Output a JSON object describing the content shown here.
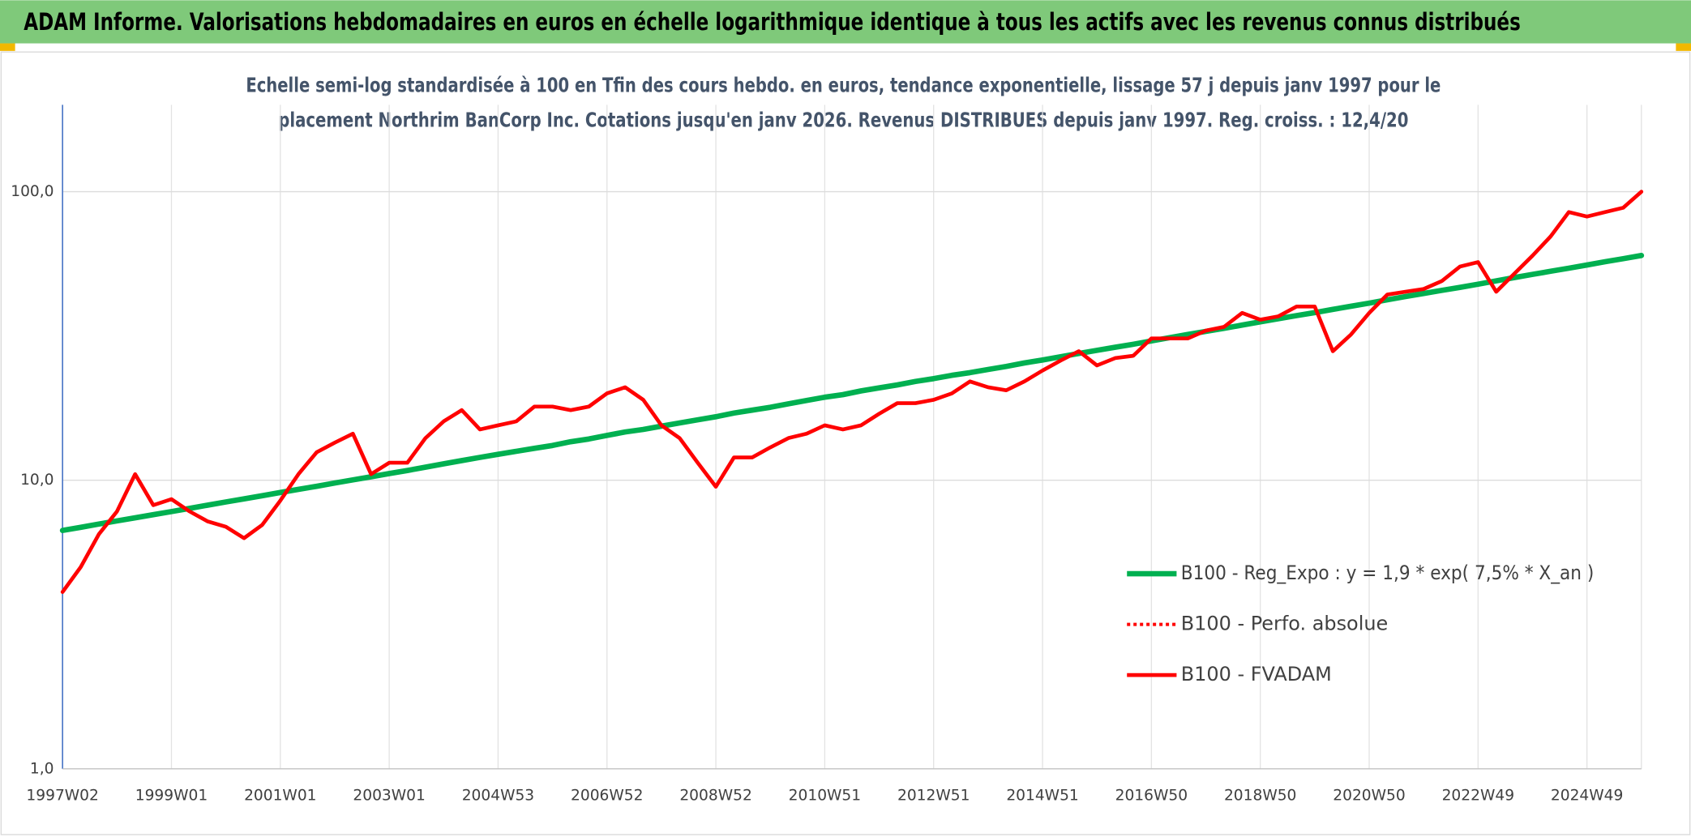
{
  "chart_data": {
    "type": "line",
    "title": "ADAM Informe. Valorisations hebdomadaires en euros en échelle logarithmique identique à tous les actifs avec les revenus connus distribués",
    "subtitle": [
      "Echelle semi-log standardisée à 100 en Tfin des cours hebdo. en euros, tendance exponentielle, lissage 57 j depuis janv 1997 pour le",
      "placement Northrim BanCorp Inc. Cotations jusqu'en janv 2026. Revenus DISTRIBUES depuis janv 1997. Reg. croiss. : 12,4/20"
    ],
    "categories": [
      "1997W02",
      null,
      null,
      null,
      null,
      null,
      "1999W01",
      null,
      null,
      null,
      null,
      null,
      "2001W01",
      null,
      null,
      null,
      null,
      null,
      "2003W01",
      null,
      null,
      null,
      null,
      null,
      "2004W53",
      null,
      null,
      null,
      null,
      null,
      "2006W52",
      null,
      null,
      null,
      null,
      null,
      "2008W52",
      null,
      null,
      null,
      null,
      null,
      "2010W51",
      null,
      null,
      null,
      null,
      null,
      "2012W51",
      null,
      null,
      null,
      null,
      null,
      "2014W51",
      null,
      null,
      null,
      null,
      null,
      "2016W50",
      null,
      null,
      null,
      null,
      null,
      "2018W50",
      null,
      null,
      null,
      null,
      null,
      "2020W50",
      null,
      null,
      null,
      null,
      null,
      "2022W49",
      null,
      null,
      null,
      null,
      null,
      "2024W49",
      null,
      null,
      null
    ],
    "log_scale": true,
    "grid": true,
    "ylim": [
      1,
      200
    ],
    "yticks": [
      {
        "value": 1,
        "label": "1,0"
      },
      {
        "value": 10,
        "label": "10,0"
      },
      {
        "value": 100,
        "label": "100,0"
      }
    ],
    "series": [
      {
        "name": "B100 - Reg_Expo : y = 1,9 * exp( 7,5% *  X_an )",
        "color": "#00b050",
        "width": 5,
        "values": [
          6.7,
          6.87,
          7.05,
          7.23,
          7.41,
          7.6,
          7.79,
          7.99,
          8.2,
          8.41,
          8.62,
          8.84,
          9.07,
          9.3,
          9.53,
          9.78,
          10.03,
          10.28,
          10.55,
          10.81,
          11.1,
          11.4,
          11.7,
          12.0,
          12.3,
          12.6,
          12.9,
          13.2,
          13.6,
          13.9,
          14.3,
          14.7,
          15.0,
          15.4,
          15.8,
          16.2,
          16.6,
          17.1,
          17.5,
          17.9,
          18.4,
          18.9,
          19.4,
          19.8,
          20.4,
          20.9,
          21.4,
          22.0,
          22.5,
          23.1,
          23.6,
          24.2,
          24.8,
          25.5,
          26.1,
          26.8,
          27.5,
          28.2,
          28.9,
          29.6,
          30.4,
          31.2,
          32.0,
          32.8,
          33.6,
          34.5,
          35.4,
          36.3,
          37.2,
          38.1,
          39.1,
          40.1,
          41.1,
          42.2,
          43.3,
          44.4,
          45.5,
          46.6,
          47.8,
          49.1,
          50.4,
          51.7,
          53.0,
          54.3,
          55.7,
          57.2,
          58.6,
          60.1
        ]
      },
      {
        "name": "B100 - Perfo. absolue",
        "color": "#ff0000",
        "dashed": true
      },
      {
        "name": "B100 - FVADAM",
        "color": "#ff0000",
        "width": 3.5,
        "values": [
          4.1,
          5.0,
          6.5,
          7.8,
          10.5,
          8.2,
          8.6,
          7.8,
          7.2,
          6.9,
          6.3,
          7.0,
          8.5,
          10.5,
          12.5,
          13.5,
          14.5,
          10.5,
          11.5,
          11.5,
          14.0,
          16.0,
          17.5,
          15.0,
          15.5,
          16.0,
          18.0,
          18.0,
          17.5,
          18.0,
          20.0,
          21.0,
          19.0,
          15.5,
          14.0,
          11.5,
          9.5,
          12.0,
          12.0,
          13.0,
          14.0,
          14.5,
          15.5,
          15.0,
          15.5,
          17.0,
          18.5,
          18.5,
          19.0,
          20.0,
          22.0,
          21.0,
          20.5,
          22.0,
          24.0,
          26.0,
          28.0,
          25.0,
          26.5,
          27.0,
          31.0,
          31.0,
          31.0,
          33.0,
          34.0,
          38.0,
          36.0,
          37.0,
          40.0,
          40.0,
          28.0,
          32.0,
          38.0,
          44.0,
          45.0,
          46.0,
          49.0,
          55.0,
          57.0,
          45.0,
          52.0,
          60.0,
          70.0,
          85.0,
          82.0,
          85.0,
          88.0,
          100.0
        ]
      }
    ]
  }
}
